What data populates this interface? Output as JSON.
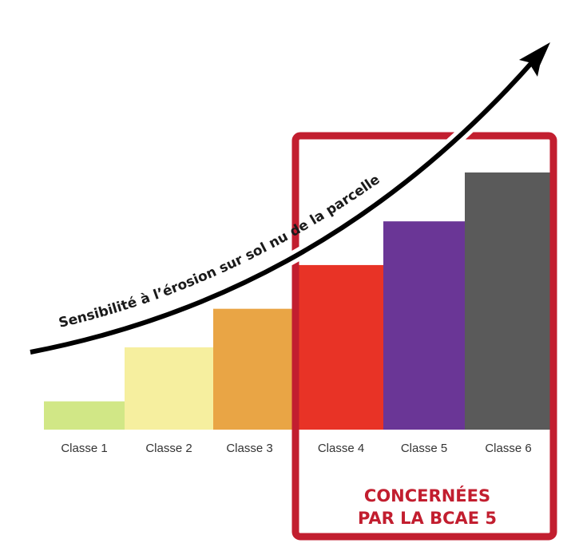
{
  "chart_data": {
    "type": "bar",
    "title": "",
    "categories": [
      "Classe 1",
      "Classe 2",
      "Classe 3",
      "Classe 4",
      "Classe 5",
      "Classe 6"
    ],
    "values": [
      11,
      32,
      47,
      64,
      81,
      100
    ],
    "colors": [
      "#d1e786",
      "#f6ef9f",
      "#e9a545",
      "#e83326",
      "#6a3696",
      "#5a5a5a"
    ],
    "grid": false,
    "arrow_label": "Sensibilité à l’érosion sur sol nu de la parcelle",
    "highlight": {
      "categories": [
        "Classe 4",
        "Classe 5",
        "Classe 6"
      ],
      "label_line1": "CONCERNÉES",
      "label_line2": "PAR LA BCAE 5",
      "color": "#c21e2f"
    }
  }
}
